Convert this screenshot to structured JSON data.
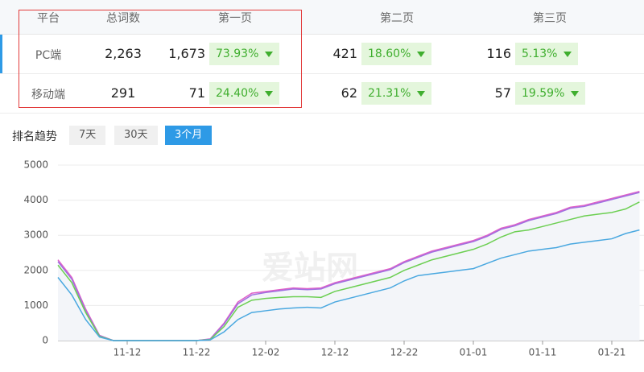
{
  "table": {
    "header": [
      "平台",
      "总词数",
      "第一页",
      "第二页",
      "第三页"
    ],
    "rows": [
      {
        "platform": "PC端",
        "total": "2,263",
        "pages": [
          {
            "count": "1,673",
            "share": "73.93%"
          },
          {
            "count": "421",
            "share": "18.60%"
          },
          {
            "count": "116",
            "share": "5.13%"
          }
        ]
      },
      {
        "platform": "移动端",
        "total": "291",
        "pages": [
          {
            "count": "71",
            "share": "24.40%"
          },
          {
            "count": "62",
            "share": "21.31%"
          },
          {
            "count": "57",
            "share": "19.59%"
          }
        ]
      }
    ]
  },
  "trend": {
    "label": "排名趋势",
    "options": [
      "7天",
      "30天",
      "3个月"
    ],
    "active": 2
  },
  "watermark": "爱站网",
  "chart_data": {
    "type": "line",
    "categories": [
      null,
      null,
      null,
      null,
      null,
      "11-12",
      null,
      null,
      null,
      null,
      "11-22",
      null,
      null,
      null,
      null,
      "12-02",
      null,
      null,
      null,
      null,
      "12-12",
      null,
      null,
      null,
      null,
      "12-22",
      null,
      null,
      null,
      null,
      "01-01",
      null,
      null,
      null,
      null,
      "01-11",
      null,
      null,
      null,
      null,
      "01-21",
      null,
      null
    ],
    "series": [
      {
        "color": "#e060c8",
        "values": [
          2300,
          1800,
          900,
          150,
          0,
          0,
          0,
          0,
          0,
          0,
          0,
          50,
          500,
          1100,
          1350,
          1400,
          1450,
          1500,
          1480,
          1500,
          1650,
          1750,
          1850,
          1950,
          2050,
          2250,
          2400,
          2550,
          2650,
          2750,
          2850,
          3000,
          3200,
          3300,
          3450,
          3550,
          3650,
          3800,
          3850,
          3950,
          4050,
          4150,
          4250
        ]
      },
      {
        "color": "#a070e0",
        "values": [
          2250,
          1750,
          850,
          140,
          0,
          0,
          0,
          0,
          0,
          0,
          0,
          40,
          470,
          1050,
          1300,
          1370,
          1420,
          1470,
          1450,
          1470,
          1620,
          1720,
          1820,
          1920,
          2020,
          2220,
          2370,
          2520,
          2620,
          2720,
          2820,
          2970,
          3170,
          3270,
          3420,
          3520,
          3620,
          3770,
          3820,
          3920,
          4020,
          4120,
          4220
        ]
      },
      {
        "color": "#6ccf52",
        "values": [
          2150,
          1650,
          800,
          120,
          0,
          0,
          0,
          0,
          0,
          0,
          0,
          30,
          400,
          950,
          1150,
          1200,
          1230,
          1250,
          1250,
          1230,
          1400,
          1500,
          1600,
          1700,
          1800,
          2000,
          2150,
          2300,
          2400,
          2500,
          2600,
          2750,
          2950,
          3100,
          3150,
          3250,
          3350,
          3450,
          3550,
          3600,
          3650,
          3750,
          3950
        ]
      },
      {
        "color": "#4aa8e0",
        "values": [
          1800,
          1300,
          600,
          100,
          0,
          0,
          0,
          0,
          0,
          0,
          0,
          20,
          250,
          600,
          800,
          850,
          900,
          930,
          950,
          930,
          1100,
          1200,
          1300,
          1400,
          1500,
          1700,
          1850,
          1900,
          1950,
          2000,
          2050,
          2200,
          2350,
          2450,
          2550,
          2600,
          2650,
          2750,
          2800,
          2850,
          2900,
          3050,
          3150
        ]
      }
    ],
    "ylim": [
      0,
      5000
    ],
    "yticks": [
      0,
      1000,
      2000,
      3000,
      4000,
      5000
    ],
    "grid": true
  }
}
